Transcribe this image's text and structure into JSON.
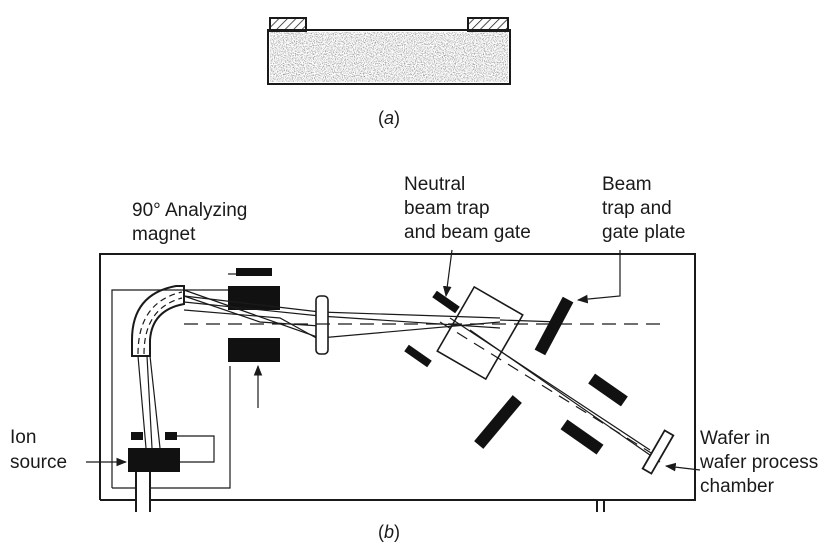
{
  "figure_a": {
    "caption_prefix": "(",
    "caption_letter": "a",
    "caption_suffix": ")"
  },
  "figure_b": {
    "caption_prefix": "(",
    "caption_letter": "b",
    "caption_suffix": ")",
    "labels": {
      "magnet": [
        "90° Analyzing",
        "magnet"
      ],
      "neutral_trap": [
        "Neutral",
        "beam trap",
        "and beam gate"
      ],
      "beam_trap": [
        "Beam",
        "trap and",
        "gate plate"
      ],
      "ion_source": [
        "Ion",
        "source"
      ],
      "wafer": [
        "Wafer in",
        "wafer process",
        "chamber"
      ]
    }
  }
}
